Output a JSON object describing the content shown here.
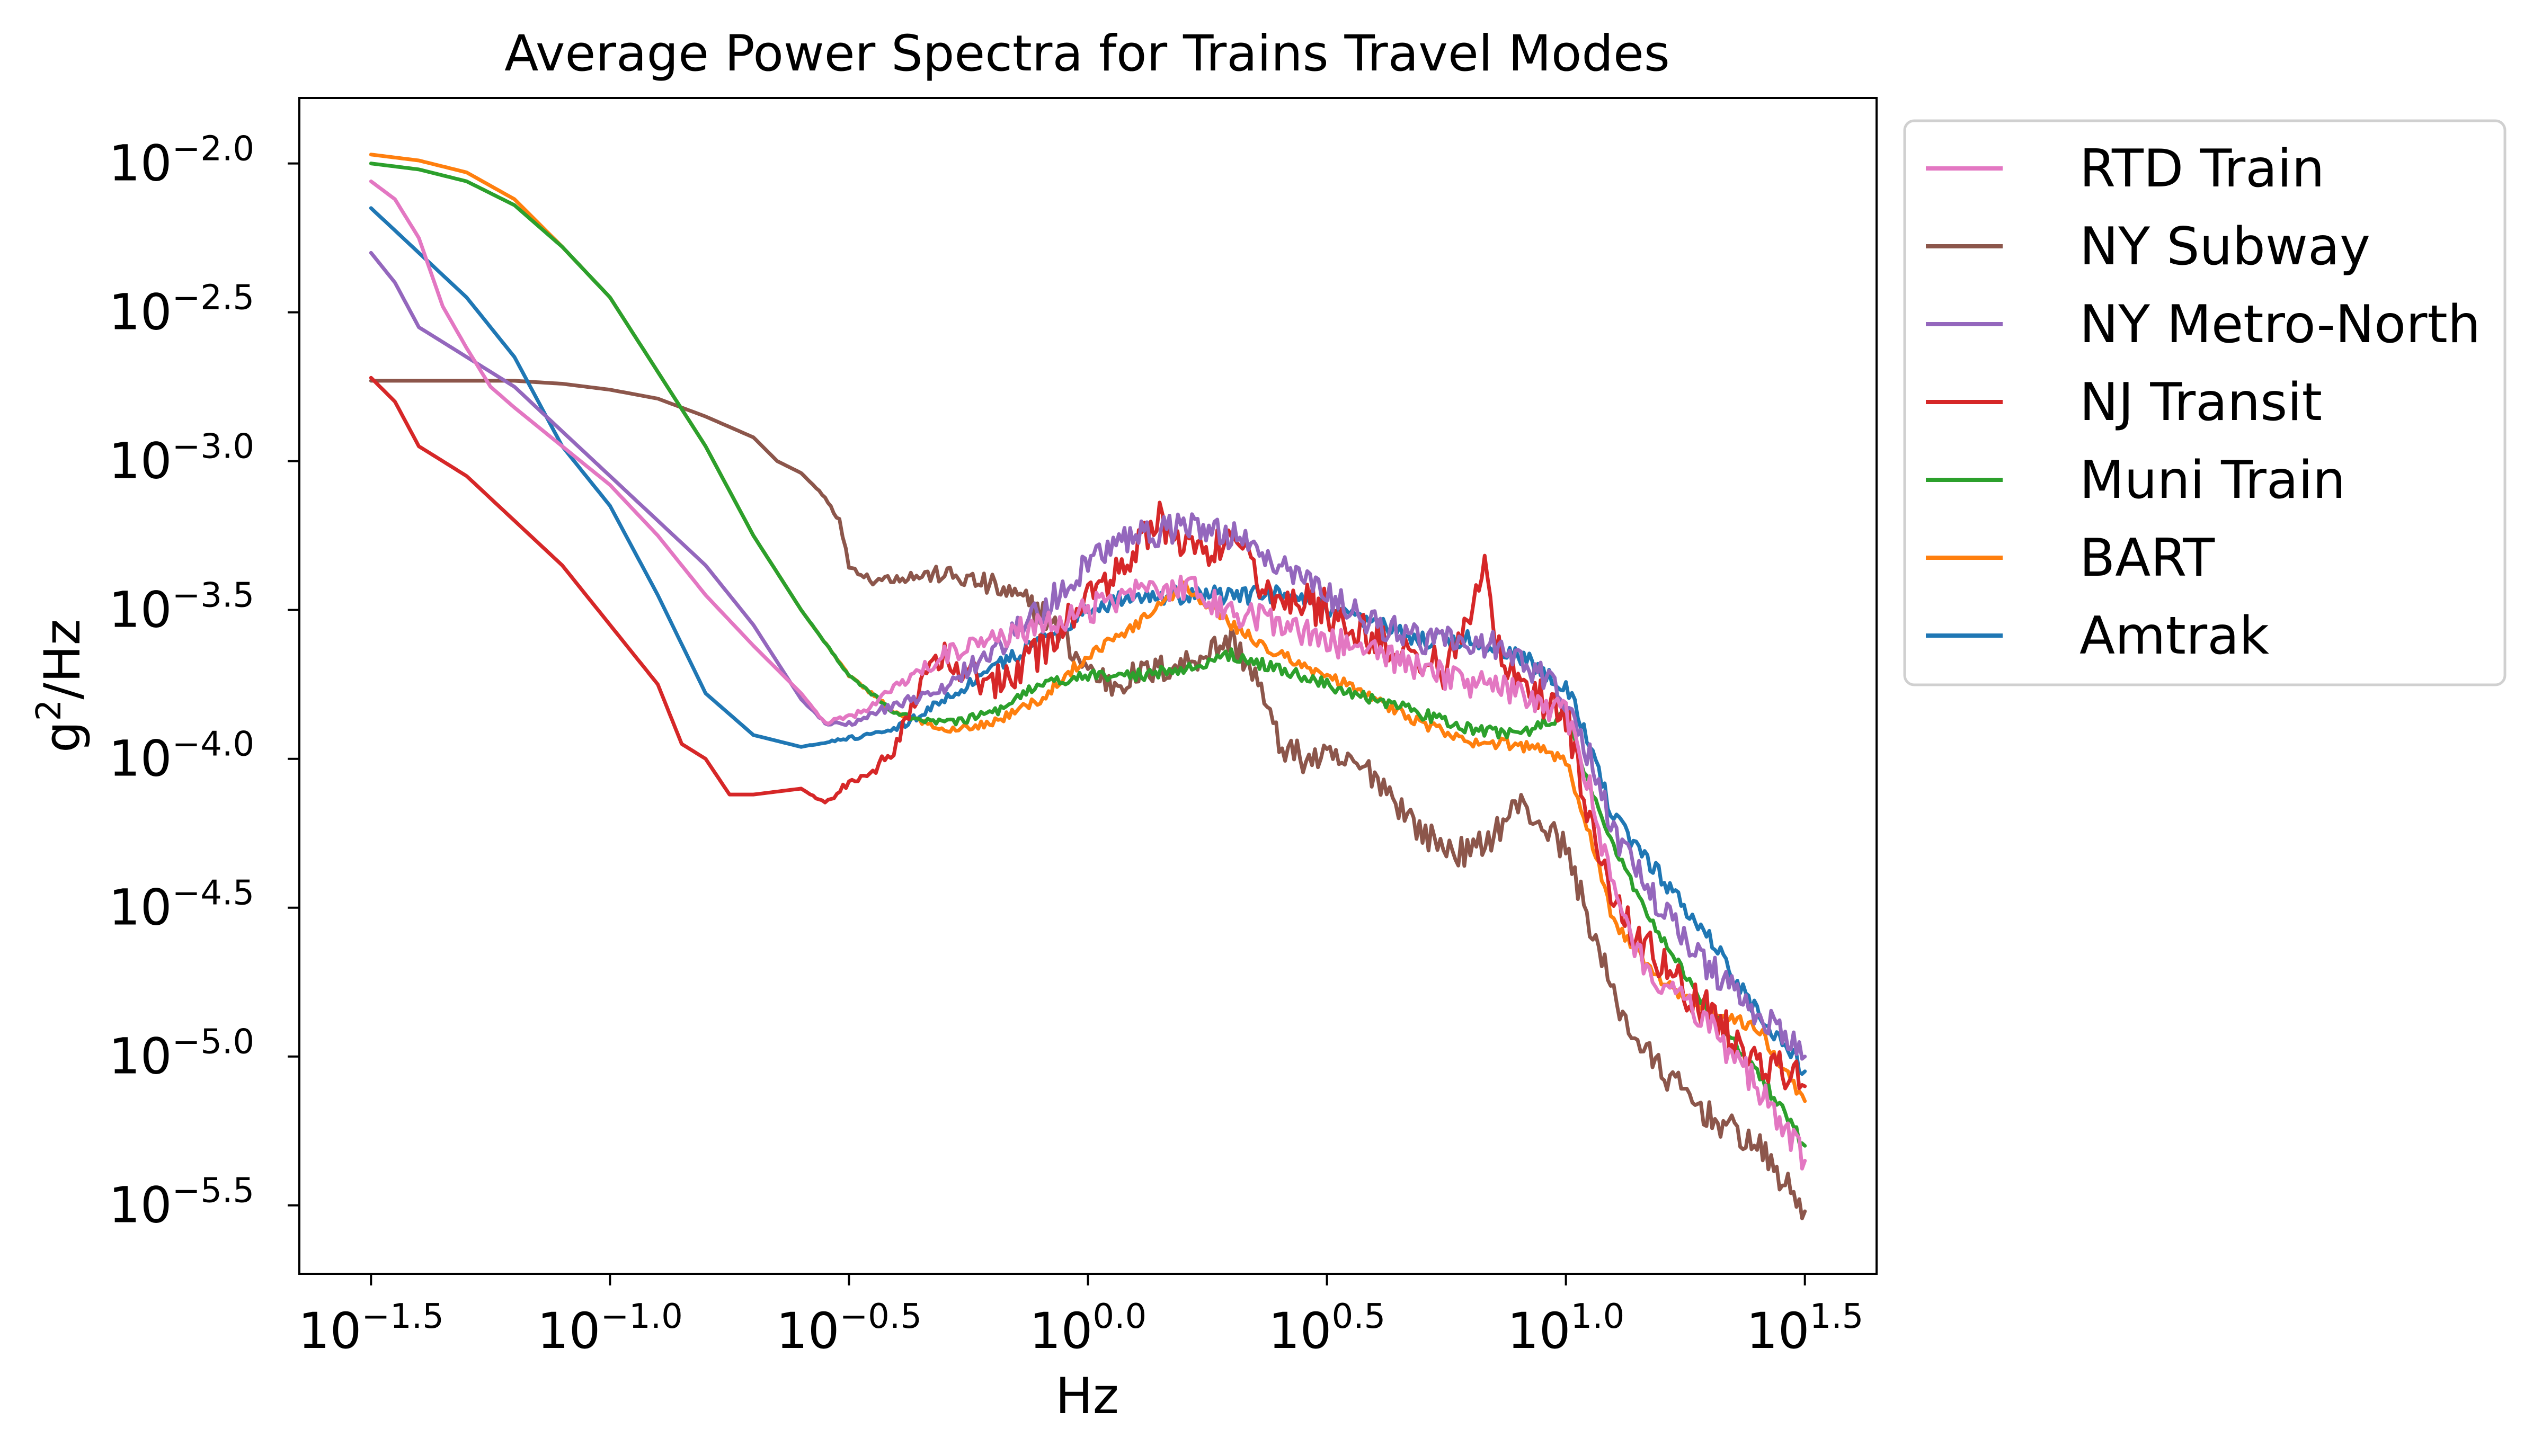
{
  "chart_data": {
    "type": "line",
    "title": "Average Power Spectra for Trains Travel Modes",
    "xlabel": "Hz",
    "ylabel_base": "g",
    "ylabel_sup": "2",
    "ylabel_rest": "/Hz",
    "x_scale": "log",
    "y_scale": "log",
    "xlim_log10": [
      -1.65,
      1.65
    ],
    "ylim_log10": [
      -5.73,
      -1.78
    ],
    "grid": false,
    "legend_position": "outside-right-top",
    "x_ticks": [
      {
        "base": "10",
        "exp": "−1.5",
        "log10": -1.5
      },
      {
        "base": "10",
        "exp": "−1.0",
        "log10": -1.0
      },
      {
        "base": "10",
        "exp": "−0.5",
        "log10": -0.5
      },
      {
        "base": "10",
        "exp": "0.0",
        "log10": 0.0
      },
      {
        "base": "10",
        "exp": "0.5",
        "log10": 0.5
      },
      {
        "base": "10",
        "exp": "1.0",
        "log10": 1.0
      },
      {
        "base": "10",
        "exp": "1.5",
        "log10": 1.5
      }
    ],
    "y_ticks": [
      {
        "base": "10",
        "exp": "−2.0",
        "log10": -2.0
      },
      {
        "base": "10",
        "exp": "−2.5",
        "log10": -2.5
      },
      {
        "base": "10",
        "exp": "−3.0",
        "log10": -3.0
      },
      {
        "base": "10",
        "exp": "−3.5",
        "log10": -3.5
      },
      {
        "base": "10",
        "exp": "−4.0",
        "log10": -4.0
      },
      {
        "base": "10",
        "exp": "−4.5",
        "log10": -4.5
      },
      {
        "base": "10",
        "exp": "−5.0",
        "log10": -5.0
      },
      {
        "base": "10",
        "exp": "−5.5",
        "log10": -5.5
      }
    ],
    "series_order_draw": [
      "NY Subway",
      "Amtrak",
      "BART",
      "Muni Train",
      "NJ Transit",
      "NY Metro-North",
      "RTD Train"
    ],
    "series": [
      {
        "name": "RTD Train",
        "color": "#e377c2",
        "noise": 0.05,
        "points": [
          [
            -1.5,
            -2.06
          ],
          [
            -1.45,
            -2.12
          ],
          [
            -1.4,
            -2.25
          ],
          [
            -1.35,
            -2.48
          ],
          [
            -1.3,
            -2.62
          ],
          [
            -1.25,
            -2.75
          ],
          [
            -1.2,
            -2.82
          ],
          [
            -1.1,
            -2.95
          ],
          [
            -1.0,
            -3.08
          ],
          [
            -0.9,
            -3.25
          ],
          [
            -0.8,
            -3.45
          ],
          [
            -0.7,
            -3.62
          ],
          [
            -0.6,
            -3.78
          ],
          [
            -0.55,
            -3.88
          ],
          [
            -0.5,
            -3.86
          ],
          [
            -0.45,
            -3.82
          ],
          [
            -0.4,
            -3.75
          ],
          [
            -0.3,
            -3.65
          ],
          [
            -0.2,
            -3.6
          ],
          [
            -0.1,
            -3.55
          ],
          [
            0.0,
            -3.5
          ],
          [
            0.1,
            -3.45
          ],
          [
            0.2,
            -3.42
          ],
          [
            0.3,
            -3.5
          ],
          [
            0.4,
            -3.55
          ],
          [
            0.5,
            -3.6
          ],
          [
            0.6,
            -3.65
          ],
          [
            0.7,
            -3.7
          ],
          [
            0.8,
            -3.75
          ],
          [
            0.9,
            -3.78
          ],
          [
            1.0,
            -3.85
          ],
          [
            1.05,
            -4.1
          ],
          [
            1.1,
            -4.45
          ],
          [
            1.15,
            -4.65
          ],
          [
            1.2,
            -4.75
          ],
          [
            1.3,
            -4.9
          ],
          [
            1.4,
            -5.1
          ],
          [
            1.5,
            -5.35
          ]
        ]
      },
      {
        "name": "NY Subway",
        "color": "#8c564b",
        "noise": 0.05,
        "points": [
          [
            -1.5,
            -2.73
          ],
          [
            -1.4,
            -2.73
          ],
          [
            -1.3,
            -2.73
          ],
          [
            -1.2,
            -2.73
          ],
          [
            -1.1,
            -2.74
          ],
          [
            -1.0,
            -2.76
          ],
          [
            -0.9,
            -2.79
          ],
          [
            -0.8,
            -2.85
          ],
          [
            -0.7,
            -2.92
          ],
          [
            -0.65,
            -3.0
          ],
          [
            -0.6,
            -3.04
          ],
          [
            -0.55,
            -3.12
          ],
          [
            -0.52,
            -3.2
          ],
          [
            -0.5,
            -3.35
          ],
          [
            -0.45,
            -3.4
          ],
          [
            -0.4,
            -3.39
          ],
          [
            -0.3,
            -3.38
          ],
          [
            -0.2,
            -3.42
          ],
          [
            -0.1,
            -3.5
          ],
          [
            -0.05,
            -3.6
          ],
          [
            0.0,
            -3.7
          ],
          [
            0.05,
            -3.75
          ],
          [
            0.1,
            -3.72
          ],
          [
            0.2,
            -3.68
          ],
          [
            0.3,
            -3.6
          ],
          [
            0.35,
            -3.72
          ],
          [
            0.4,
            -3.95
          ],
          [
            0.45,
            -4.0
          ],
          [
            0.5,
            -4.0
          ],
          [
            0.55,
            -4.02
          ],
          [
            0.6,
            -4.05
          ],
          [
            0.65,
            -4.15
          ],
          [
            0.7,
            -4.25
          ],
          [
            0.75,
            -4.3
          ],
          [
            0.8,
            -4.32
          ],
          [
            0.85,
            -4.25
          ],
          [
            0.9,
            -4.15
          ],
          [
            0.95,
            -4.22
          ],
          [
            1.0,
            -4.3
          ],
          [
            1.05,
            -4.55
          ],
          [
            1.1,
            -4.8
          ],
          [
            1.15,
            -4.95
          ],
          [
            1.2,
            -5.05
          ],
          [
            1.3,
            -5.2
          ],
          [
            1.4,
            -5.3
          ],
          [
            1.5,
            -5.52
          ]
        ]
      },
      {
        "name": "NY Metro-North",
        "color": "#9467bd",
        "noise": 0.05,
        "points": [
          [
            -1.5,
            -2.3
          ],
          [
            -1.45,
            -2.4
          ],
          [
            -1.4,
            -2.55
          ],
          [
            -1.3,
            -2.65
          ],
          [
            -1.2,
            -2.75
          ],
          [
            -1.1,
            -2.9
          ],
          [
            -1.0,
            -3.05
          ],
          [
            -0.9,
            -3.2
          ],
          [
            -0.8,
            -3.35
          ],
          [
            -0.7,
            -3.55
          ],
          [
            -0.6,
            -3.8
          ],
          [
            -0.55,
            -3.88
          ],
          [
            -0.5,
            -3.88
          ],
          [
            -0.45,
            -3.85
          ],
          [
            -0.4,
            -3.82
          ],
          [
            -0.3,
            -3.75
          ],
          [
            -0.2,
            -3.65
          ],
          [
            -0.1,
            -3.5
          ],
          [
            0.0,
            -3.35
          ],
          [
            0.1,
            -3.25
          ],
          [
            0.2,
            -3.22
          ],
          [
            0.3,
            -3.25
          ],
          [
            0.4,
            -3.35
          ],
          [
            0.5,
            -3.45
          ],
          [
            0.6,
            -3.55
          ],
          [
            0.7,
            -3.6
          ],
          [
            0.8,
            -3.6
          ],
          [
            0.9,
            -3.65
          ],
          [
            1.0,
            -3.8
          ],
          [
            1.05,
            -4.0
          ],
          [
            1.1,
            -4.25
          ],
          [
            1.2,
            -4.5
          ],
          [
            1.3,
            -4.7
          ],
          [
            1.4,
            -4.85
          ],
          [
            1.5,
            -5.0
          ]
        ]
      },
      {
        "name": "NJ Transit",
        "color": "#d62728",
        "noise": 0.07,
        "points": [
          [
            -1.5,
            -2.72
          ],
          [
            -1.45,
            -2.8
          ],
          [
            -1.4,
            -2.95
          ],
          [
            -1.3,
            -3.05
          ],
          [
            -1.2,
            -3.2
          ],
          [
            -1.1,
            -3.35
          ],
          [
            -1.0,
            -3.55
          ],
          [
            -0.9,
            -3.75
          ],
          [
            -0.85,
            -3.95
          ],
          [
            -0.8,
            -4.0
          ],
          [
            -0.75,
            -4.12
          ],
          [
            -0.7,
            -4.12
          ],
          [
            -0.6,
            -4.1
          ],
          [
            -0.55,
            -4.15
          ],
          [
            -0.5,
            -4.08
          ],
          [
            -0.45,
            -4.05
          ],
          [
            -0.4,
            -3.95
          ],
          [
            -0.35,
            -3.75
          ],
          [
            -0.3,
            -3.65
          ],
          [
            -0.25,
            -3.72
          ],
          [
            -0.2,
            -3.75
          ],
          [
            -0.1,
            -3.65
          ],
          [
            0.0,
            -3.45
          ],
          [
            0.1,
            -3.3
          ],
          [
            0.15,
            -3.2
          ],
          [
            0.2,
            -3.3
          ],
          [
            0.3,
            -3.3
          ],
          [
            0.4,
            -3.45
          ],
          [
            0.5,
            -3.5
          ],
          [
            0.6,
            -3.6
          ],
          [
            0.7,
            -3.65
          ],
          [
            0.75,
            -3.7
          ],
          [
            0.8,
            -3.55
          ],
          [
            0.83,
            -3.35
          ],
          [
            0.86,
            -3.65
          ],
          [
            0.9,
            -3.75
          ],
          [
            1.0,
            -3.85
          ],
          [
            1.05,
            -4.2
          ],
          [
            1.1,
            -4.5
          ],
          [
            1.2,
            -4.7
          ],
          [
            1.3,
            -4.85
          ],
          [
            1.4,
            -5.0
          ],
          [
            1.5,
            -5.1
          ]
        ]
      },
      {
        "name": "Muni Train",
        "color": "#2ca02c",
        "noise": 0.02,
        "points": [
          [
            -1.5,
            -2.0
          ],
          [
            -1.4,
            -2.02
          ],
          [
            -1.3,
            -2.06
          ],
          [
            -1.2,
            -2.14
          ],
          [
            -1.1,
            -2.28
          ],
          [
            -1.0,
            -2.45
          ],
          [
            -0.9,
            -2.7
          ],
          [
            -0.8,
            -2.95
          ],
          [
            -0.7,
            -3.25
          ],
          [
            -0.6,
            -3.5
          ],
          [
            -0.5,
            -3.72
          ],
          [
            -0.4,
            -3.85
          ],
          [
            -0.3,
            -3.88
          ],
          [
            -0.2,
            -3.85
          ],
          [
            -0.1,
            -3.75
          ],
          [
            0.0,
            -3.72
          ],
          [
            0.1,
            -3.72
          ],
          [
            0.2,
            -3.7
          ],
          [
            0.3,
            -3.65
          ],
          [
            0.4,
            -3.7
          ],
          [
            0.5,
            -3.75
          ],
          [
            0.6,
            -3.8
          ],
          [
            0.7,
            -3.85
          ],
          [
            0.8,
            -3.9
          ],
          [
            0.9,
            -3.92
          ],
          [
            1.0,
            -3.85
          ],
          [
            1.05,
            -4.1
          ],
          [
            1.1,
            -4.3
          ],
          [
            1.2,
            -4.6
          ],
          [
            1.3,
            -4.85
          ],
          [
            1.4,
            -5.05
          ],
          [
            1.5,
            -5.3
          ]
        ]
      },
      {
        "name": "BART",
        "color": "#ff7f0e",
        "noise": 0.02,
        "points": [
          [
            -1.5,
            -1.97
          ],
          [
            -1.4,
            -1.99
          ],
          [
            -1.3,
            -2.03
          ],
          [
            -1.2,
            -2.12
          ],
          [
            -1.1,
            -2.28
          ],
          [
            -1.0,
            -2.45
          ],
          [
            -0.9,
            -2.7
          ],
          [
            -0.8,
            -2.95
          ],
          [
            -0.7,
            -3.25
          ],
          [
            -0.6,
            -3.5
          ],
          [
            -0.5,
            -3.72
          ],
          [
            -0.4,
            -3.85
          ],
          [
            -0.3,
            -3.9
          ],
          [
            -0.2,
            -3.88
          ],
          [
            -0.1,
            -3.8
          ],
          [
            0.0,
            -3.65
          ],
          [
            0.1,
            -3.55
          ],
          [
            0.2,
            -3.42
          ],
          [
            0.3,
            -3.55
          ],
          [
            0.4,
            -3.65
          ],
          [
            0.5,
            -3.72
          ],
          [
            0.6,
            -3.8
          ],
          [
            0.7,
            -3.88
          ],
          [
            0.8,
            -3.95
          ],
          [
            0.9,
            -3.95
          ],
          [
            1.0,
            -4.0
          ],
          [
            1.05,
            -4.25
          ],
          [
            1.1,
            -4.55
          ],
          [
            1.2,
            -4.75
          ],
          [
            1.3,
            -4.85
          ],
          [
            1.4,
            -4.9
          ],
          [
            1.5,
            -5.15
          ]
        ]
      },
      {
        "name": "Amtrak",
        "color": "#1f77b4",
        "noise": 0.03,
        "points": [
          [
            -1.5,
            -2.15
          ],
          [
            -1.4,
            -2.3
          ],
          [
            -1.3,
            -2.45
          ],
          [
            -1.2,
            -2.65
          ],
          [
            -1.1,
            -2.95
          ],
          [
            -1.0,
            -3.15
          ],
          [
            -0.9,
            -3.45
          ],
          [
            -0.8,
            -3.78
          ],
          [
            -0.7,
            -3.92
          ],
          [
            -0.6,
            -3.96
          ],
          [
            -0.5,
            -3.93
          ],
          [
            -0.45,
            -3.92
          ],
          [
            -0.4,
            -3.9
          ],
          [
            -0.3,
            -3.8
          ],
          [
            -0.2,
            -3.7
          ],
          [
            -0.1,
            -3.6
          ],
          [
            0.0,
            -3.5
          ],
          [
            0.1,
            -3.45
          ],
          [
            0.2,
            -3.45
          ],
          [
            0.3,
            -3.45
          ],
          [
            0.4,
            -3.45
          ],
          [
            0.5,
            -3.5
          ],
          [
            0.6,
            -3.55
          ],
          [
            0.7,
            -3.6
          ],
          [
            0.8,
            -3.6
          ],
          [
            0.9,
            -3.65
          ],
          [
            1.0,
            -3.75
          ],
          [
            1.05,
            -3.95
          ],
          [
            1.1,
            -4.2
          ],
          [
            1.2,
            -4.4
          ],
          [
            1.3,
            -4.6
          ],
          [
            1.4,
            -4.85
          ],
          [
            1.5,
            -5.05
          ]
        ]
      }
    ]
  }
}
